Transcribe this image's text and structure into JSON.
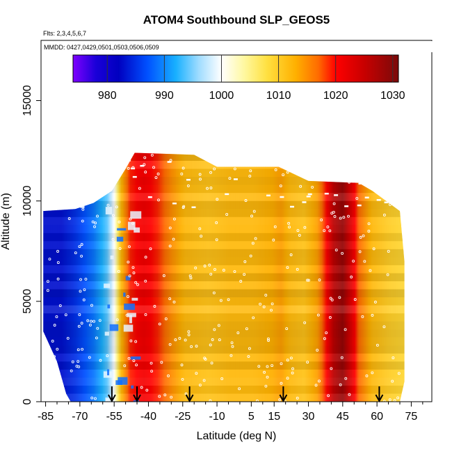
{
  "chart_data": {
    "type": "heatmap",
    "title": "ATOM4 Southbound SLP_GEOS5",
    "flights_label": "Flts: 2,3,4,5,6,7",
    "dates_label": "MMDD: 0427,0429,0501,0503,0506,0509",
    "xlabel": "Latitude (deg N)",
    "ylabel": "Altitude (m)",
    "xlim": [
      -87,
      84
    ],
    "ylim": [
      0,
      18000
    ],
    "x_ticks": [
      -85,
      -70,
      -55,
      -40,
      -25,
      -10,
      5,
      15,
      30,
      45,
      60,
      75
    ],
    "x_tick_labels": [
      "-85",
      "-70",
      "-55",
      "-40",
      "-25",
      "-10",
      "5",
      "15",
      "30",
      "45",
      "60",
      "75"
    ],
    "x_minor_ticks": [
      -80,
      -75,
      -65,
      -60,
      -50,
      -45,
      -35,
      -30,
      -20,
      -15,
      -5,
      0,
      10,
      20,
      25,
      35,
      40,
      50,
      55,
      65,
      70,
      80
    ],
    "y_ticks": [
      0,
      5000,
      10000,
      15000
    ],
    "y_tick_labels": [
      "0",
      "5000",
      "10000",
      "15000"
    ],
    "colorbar": {
      "min": 974,
      "max": 1031,
      "ticks": [
        980,
        990,
        1000,
        1010,
        1020,
        1030
      ],
      "tick_labels": [
        "980",
        "990",
        "1000",
        "1010",
        "1020",
        "1030"
      ],
      "stops": [
        {
          "v": 974,
          "color": "#7f00ff"
        },
        {
          "v": 978,
          "color": "#1a00d8"
        },
        {
          "v": 982,
          "color": "#0000c0"
        },
        {
          "v": 987,
          "color": "#0050ff"
        },
        {
          "v": 992,
          "color": "#18b0ff"
        },
        {
          "v": 996,
          "color": "#9fdcff"
        },
        {
          "v": 1000,
          "color": "#ffffff"
        },
        {
          "v": 1004,
          "color": "#fff8a0"
        },
        {
          "v": 1008,
          "color": "#ffe040"
        },
        {
          "v": 1013,
          "color": "#ffb000"
        },
        {
          "v": 1017,
          "color": "#ff6a00"
        },
        {
          "v": 1020,
          "color": "#ff0000"
        },
        {
          "v": 1025,
          "color": "#c80000"
        },
        {
          "v": 1031,
          "color": "#7a0a0a"
        }
      ]
    },
    "pressure_profile_by_latitude": [
      {
        "lat": -86,
        "hpa": 983
      },
      {
        "lat": -78,
        "hpa": 983
      },
      {
        "lat": -72,
        "hpa": 985
      },
      {
        "lat": -64,
        "hpa": 989
      },
      {
        "lat": -58,
        "hpa": 994
      },
      {
        "lat": -55,
        "hpa": 1000
      },
      {
        "lat": -52,
        "hpa": 1012
      },
      {
        "lat": -48,
        "hpa": 1019
      },
      {
        "lat": -42,
        "hpa": 1021
      },
      {
        "lat": -36,
        "hpa": 1019
      },
      {
        "lat": -30,
        "hpa": 1015
      },
      {
        "lat": -24,
        "hpa": 1012
      },
      {
        "lat": -14,
        "hpa": 1011
      },
      {
        "lat": -4,
        "hpa": 1012
      },
      {
        "lat": 6,
        "hpa": 1012
      },
      {
        "lat": 14,
        "hpa": 1013
      },
      {
        "lat": 18,
        "hpa": 1014
      },
      {
        "lat": 22,
        "hpa": 1012
      },
      {
        "lat": 28,
        "hpa": 1011
      },
      {
        "lat": 34,
        "hpa": 1014
      },
      {
        "lat": 38,
        "hpa": 1020
      },
      {
        "lat": 41,
        "hpa": 1026
      },
      {
        "lat": 45,
        "hpa": 1029
      },
      {
        "lat": 48,
        "hpa": 1024
      },
      {
        "lat": 52,
        "hpa": 1017
      },
      {
        "lat": 58,
        "hpa": 1012
      },
      {
        "lat": 65,
        "hpa": 1010
      },
      {
        "lat": 71,
        "hpa": 1009
      }
    ],
    "coverage_top_by_latitude": [
      {
        "lat": -86,
        "alt": 9500
      },
      {
        "lat": -72,
        "alt": 9600
      },
      {
        "lat": -64,
        "alt": 9900
      },
      {
        "lat": -56,
        "alt": 10500
      },
      {
        "lat": -50,
        "alt": 11600
      },
      {
        "lat": -46,
        "alt": 12400
      },
      {
        "lat": -20,
        "alt": 12300
      },
      {
        "lat": -10,
        "alt": 11700
      },
      {
        "lat": 17,
        "alt": 11700
      },
      {
        "lat": 30,
        "alt": 11000
      },
      {
        "lat": 52,
        "alt": 10900
      },
      {
        "lat": 58,
        "alt": 10500
      },
      {
        "lat": 70,
        "alt": 9500
      },
      {
        "lat": 72,
        "alt": 7000
      }
    ],
    "coverage_bottom_by_latitude": [
      {
        "lat": -86,
        "alt": 3500
      },
      {
        "lat": -80,
        "alt": 2000
      },
      {
        "lat": -76,
        "alt": 400
      },
      {
        "lat": -74,
        "alt": 0
      },
      {
        "lat": 70,
        "alt": 0
      },
      {
        "lat": 72,
        "alt": 1000
      }
    ],
    "sounding_arrows_latitude": [
      -56,
      -45,
      -22,
      19,
      61
    ]
  }
}
